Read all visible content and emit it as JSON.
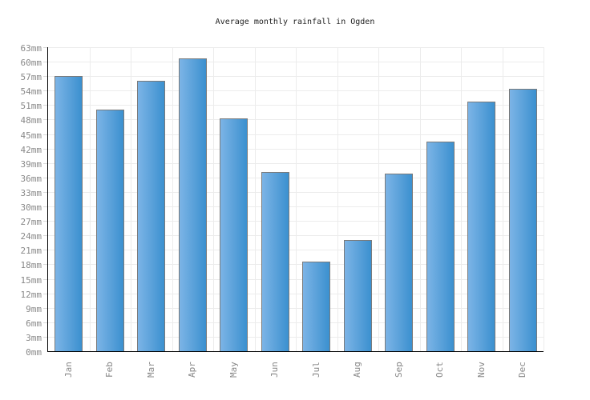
{
  "title": "Average monthly rainfall in Ogden",
  "chart_data": {
    "type": "bar",
    "title": "Average monthly rainfall in Ogden",
    "categories": [
      "Jan",
      "Feb",
      "Mar",
      "Apr",
      "May",
      "Jun",
      "Jul",
      "Aug",
      "Sep",
      "Oct",
      "Nov",
      "Dec"
    ],
    "values": [
      57.0,
      50.0,
      56.1,
      60.7,
      48.2,
      37.2,
      18.6,
      23.0,
      36.8,
      43.4,
      51.8,
      54.4
    ],
    "unit": "mm",
    "xlabel": "",
    "ylabel": "",
    "ylim": [
      0,
      63
    ],
    "ytick_step": 3,
    "ytick_labels": [
      "0mm",
      "3mm",
      "6mm",
      "9mm",
      "12mm",
      "15mm",
      "18mm",
      "21mm",
      "24mm",
      "27mm",
      "30mm",
      "33mm",
      "36mm",
      "39mm",
      "42mm",
      "45mm",
      "48mm",
      "51mm",
      "54mm",
      "57mm",
      "60mm",
      "63mm"
    ],
    "grid": true,
    "legend": false,
    "colors": {
      "bar_gradient_left": "#7cb4e6",
      "bar_gradient_right": "#3b90cf",
      "bar_border": "#7a7a7a",
      "gridline": "#ececec",
      "axis": "#000000",
      "tick_text": "#888888",
      "title_text": "#222222"
    }
  }
}
